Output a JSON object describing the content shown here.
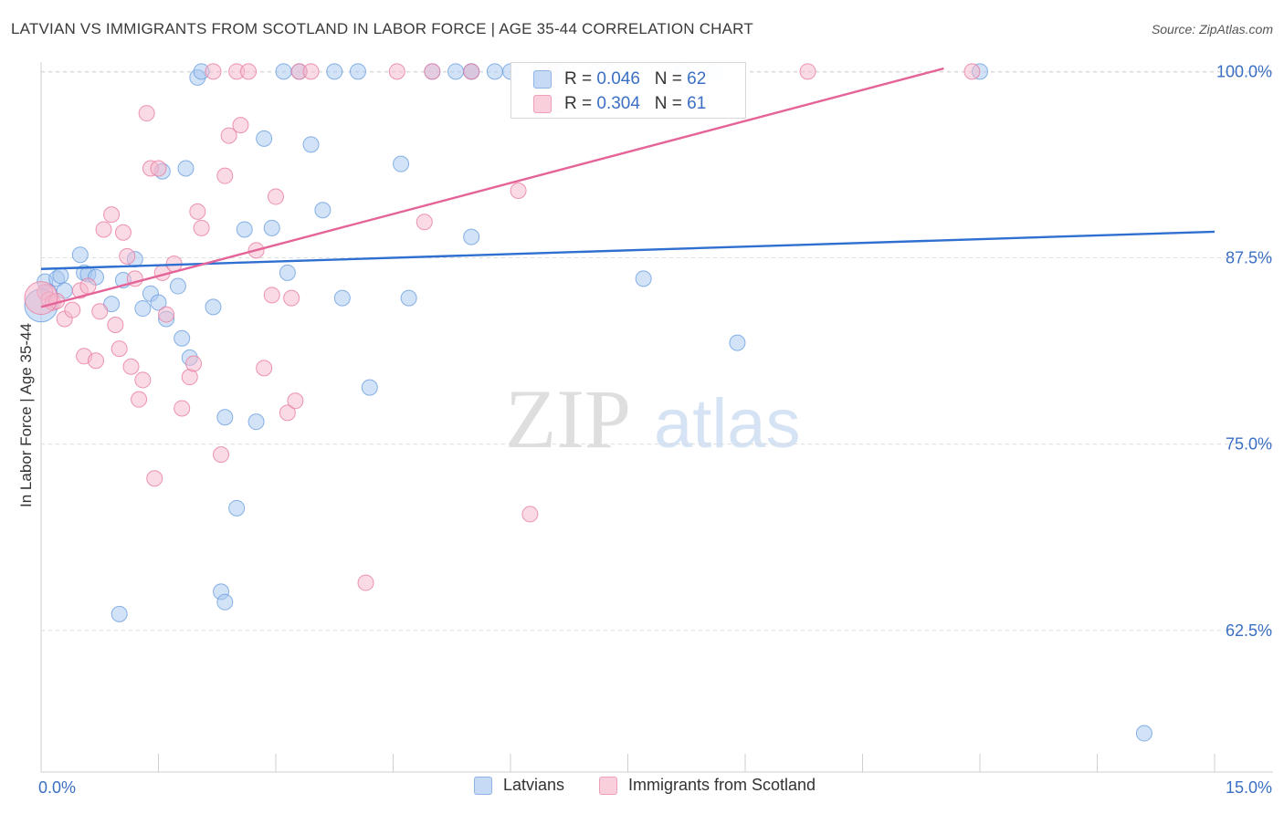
{
  "header": {
    "title": "LATVIAN VS IMMIGRANTS FROM SCOTLAND IN LABOR FORCE | AGE 35-44 CORRELATION CHART",
    "source": "Source: ZipAtlas.com"
  },
  "watermark": {
    "zip": "ZIP",
    "atlas": "atlas"
  },
  "legend": {
    "rows": [
      {
        "r_label": "R = ",
        "r_value": "0.046",
        "n_label": "N = ",
        "n_value": "62",
        "color": "#a8c8f0"
      },
      {
        "r_label": "R = ",
        "r_value": "0.304",
        "n_label": "N = ",
        "n_value": "61",
        "color": "#f5b8cc"
      }
    ]
  },
  "bottom_legend": {
    "items": [
      {
        "label": "Latvians",
        "color": "#a8c8f0"
      },
      {
        "label": "Immigrants from Scotland",
        "color": "#f5b8cc"
      }
    ]
  },
  "chart_data": {
    "type": "scatter",
    "ylabel": "In Labor Force | Age 35-44",
    "xlim": [
      0,
      15
    ],
    "ylim": [
      53,
      101
    ],
    "x_tick_labels": [
      "0.0%",
      "15.0%"
    ],
    "y_ticks": [
      62.5,
      75.0,
      87.5,
      100.0
    ],
    "y_tick_labels": [
      "62.5%",
      "75.0%",
      "87.5%",
      "100.0%"
    ],
    "grid": true,
    "legend_position": "top-center",
    "series": [
      {
        "name": "Latvians",
        "color": "#6a9fe0",
        "fill": "#a8c8f0",
        "trend": {
          "x": [
            0,
            15
          ],
          "y": [
            86.75,
            89.25
          ]
        },
        "points": [
          [
            0.05,
            85.9
          ],
          [
            0.1,
            85.2
          ],
          [
            0.2,
            86.1
          ],
          [
            0.25,
            86.3
          ],
          [
            0.3,
            85.3
          ],
          [
            0.5,
            87.7
          ],
          [
            0.55,
            86.5
          ],
          [
            0.6,
            86.4
          ],
          [
            0.7,
            86.2
          ],
          [
            0.9,
            84.4
          ],
          [
            1.05,
            86.0
          ],
          [
            1.2,
            87.4
          ],
          [
            1.3,
            84.1
          ],
          [
            1.4,
            85.1
          ],
          [
            1.5,
            84.5
          ],
          [
            1.6,
            83.4
          ],
          [
            1.75,
            85.6
          ],
          [
            1.8,
            82.1
          ],
          [
            1.85,
            93.5
          ],
          [
            1.9,
            80.8
          ],
          [
            2.0,
            99.6
          ],
          [
            2.05,
            100.0
          ],
          [
            2.2,
            84.2
          ],
          [
            2.35,
            76.8
          ],
          [
            2.5,
            70.7
          ],
          [
            2.6,
            89.4
          ],
          [
            2.75,
            76.5
          ],
          [
            2.85,
            95.5
          ],
          [
            2.95,
            89.5
          ],
          [
            3.1,
            100.0
          ],
          [
            3.15,
            86.5
          ],
          [
            3.3,
            100.0
          ],
          [
            3.45,
            95.1
          ],
          [
            3.6,
            90.7
          ],
          [
            3.75,
            100.0
          ],
          [
            3.85,
            84.8
          ],
          [
            4.05,
            100.0
          ],
          [
            4.2,
            78.8
          ],
          [
            4.6,
            93.8
          ],
          [
            4.7,
            84.8
          ],
          [
            5.0,
            100.0
          ],
          [
            5.3,
            100.0
          ],
          [
            5.5,
            100.0
          ],
          [
            5.5,
            88.9
          ],
          [
            5.5,
            100.0
          ],
          [
            5.8,
            100.0
          ],
          [
            6.0,
            100.0
          ],
          [
            6.35,
            100.0
          ],
          [
            6.6,
            100.0
          ],
          [
            7.1,
            100.0
          ],
          [
            7.3,
            100.0
          ],
          [
            7.7,
            86.1
          ],
          [
            8.2,
            100.0
          ],
          [
            8.6,
            100.0
          ],
          [
            8.9,
            81.8
          ],
          [
            1.0,
            63.6
          ],
          [
            2.3,
            65.1
          ],
          [
            2.35,
            64.4
          ],
          [
            1.55,
            93.3
          ],
          [
            12.0,
            100.0
          ],
          [
            14.1,
            55.6
          ],
          [
            0.0,
            84.3
          ]
        ]
      },
      {
        "name": "Immigrants from Scotland",
        "color": "#e87aa0",
        "fill": "#f5b8cc",
        "trend": {
          "x": [
            0,
            15
          ],
          "y": [
            84.2,
            105.0
          ]
        },
        "points": [
          [
            0.05,
            85.2
          ],
          [
            0.1,
            84.7
          ],
          [
            0.15,
            84.5
          ],
          [
            0.2,
            84.6
          ],
          [
            0.3,
            83.4
          ],
          [
            0.4,
            84.0
          ],
          [
            0.5,
            85.3
          ],
          [
            0.55,
            80.9
          ],
          [
            0.6,
            85.6
          ],
          [
            0.7,
            80.6
          ],
          [
            0.75,
            83.9
          ],
          [
            0.8,
            89.4
          ],
          [
            0.9,
            90.4
          ],
          [
            0.95,
            83.0
          ],
          [
            1.0,
            81.4
          ],
          [
            1.05,
            89.2
          ],
          [
            1.1,
            87.6
          ],
          [
            1.15,
            80.2
          ],
          [
            1.2,
            86.1
          ],
          [
            1.25,
            78.0
          ],
          [
            1.3,
            79.3
          ],
          [
            1.35,
            97.2
          ],
          [
            1.4,
            93.5
          ],
          [
            1.45,
            72.7
          ],
          [
            1.5,
            93.5
          ],
          [
            1.55,
            86.5
          ],
          [
            1.6,
            83.7
          ],
          [
            1.7,
            87.1
          ],
          [
            1.8,
            77.4
          ],
          [
            1.9,
            79.5
          ],
          [
            1.95,
            80.4
          ],
          [
            2.0,
            90.6
          ],
          [
            2.05,
            89.5
          ],
          [
            2.2,
            100.0
          ],
          [
            2.3,
            74.3
          ],
          [
            2.35,
            93.0
          ],
          [
            2.4,
            95.7
          ],
          [
            2.5,
            100.0
          ],
          [
            2.55,
            96.4
          ],
          [
            2.65,
            100.0
          ],
          [
            2.75,
            88.0
          ],
          [
            2.85,
            80.1
          ],
          [
            2.95,
            85.0
          ],
          [
            3.0,
            91.6
          ],
          [
            3.15,
            77.1
          ],
          [
            3.2,
            84.8
          ],
          [
            3.25,
            77.9
          ],
          [
            3.3,
            100.0
          ],
          [
            3.45,
            100.0
          ],
          [
            4.15,
            65.7
          ],
          [
            4.55,
            100.0
          ],
          [
            4.9,
            89.9
          ],
          [
            5.0,
            100.0
          ],
          [
            5.5,
            100.0
          ],
          [
            6.1,
            92.0
          ],
          [
            6.25,
            70.3
          ],
          [
            6.5,
            100.0
          ],
          [
            6.6,
            97.8
          ],
          [
            9.8,
            100.0
          ],
          [
            11.9,
            100.0
          ],
          [
            0.0,
            84.8
          ]
        ]
      }
    ]
  }
}
